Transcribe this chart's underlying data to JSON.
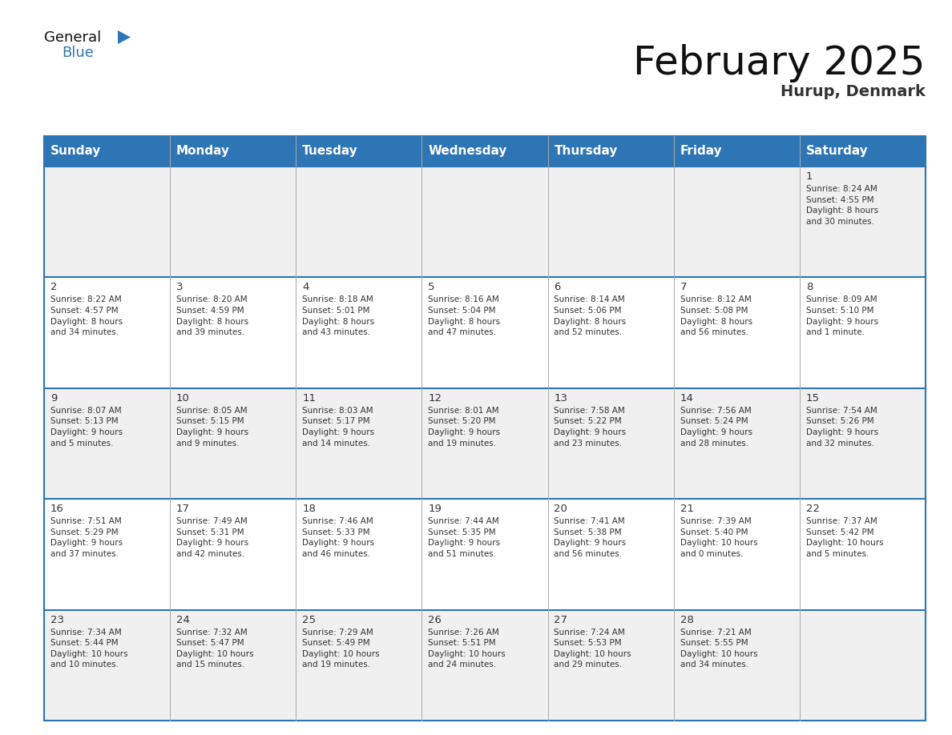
{
  "title": "February 2025",
  "subtitle": "Hurup, Denmark",
  "days_of_week": [
    "Sunday",
    "Monday",
    "Tuesday",
    "Wednesday",
    "Thursday",
    "Friday",
    "Saturday"
  ],
  "header_bg": "#2E75B6",
  "header_text_color": "#FFFFFF",
  "row_line_color": "#2E75B6",
  "cell_line_color": "#AAAAAA",
  "cell_text_color": "#333333",
  "logo_general_color": "#111111",
  "logo_blue_color": "#2E75B6",
  "title_fontsize": 36,
  "subtitle_fontsize": 14,
  "header_fontsize": 11,
  "day_num_fontsize": 9.5,
  "cell_text_fontsize": 7.5,
  "calendar": [
    [
      {
        "day": null,
        "info": null
      },
      {
        "day": null,
        "info": null
      },
      {
        "day": null,
        "info": null
      },
      {
        "day": null,
        "info": null
      },
      {
        "day": null,
        "info": null
      },
      {
        "day": null,
        "info": null
      },
      {
        "day": 1,
        "info": "Sunrise: 8:24 AM\nSunset: 4:55 PM\nDaylight: 8 hours\nand 30 minutes."
      }
    ],
    [
      {
        "day": 2,
        "info": "Sunrise: 8:22 AM\nSunset: 4:57 PM\nDaylight: 8 hours\nand 34 minutes."
      },
      {
        "day": 3,
        "info": "Sunrise: 8:20 AM\nSunset: 4:59 PM\nDaylight: 8 hours\nand 39 minutes."
      },
      {
        "day": 4,
        "info": "Sunrise: 8:18 AM\nSunset: 5:01 PM\nDaylight: 8 hours\nand 43 minutes."
      },
      {
        "day": 5,
        "info": "Sunrise: 8:16 AM\nSunset: 5:04 PM\nDaylight: 8 hours\nand 47 minutes."
      },
      {
        "day": 6,
        "info": "Sunrise: 8:14 AM\nSunset: 5:06 PM\nDaylight: 8 hours\nand 52 minutes."
      },
      {
        "day": 7,
        "info": "Sunrise: 8:12 AM\nSunset: 5:08 PM\nDaylight: 8 hours\nand 56 minutes."
      },
      {
        "day": 8,
        "info": "Sunrise: 8:09 AM\nSunset: 5:10 PM\nDaylight: 9 hours\nand 1 minute."
      }
    ],
    [
      {
        "day": 9,
        "info": "Sunrise: 8:07 AM\nSunset: 5:13 PM\nDaylight: 9 hours\nand 5 minutes."
      },
      {
        "day": 10,
        "info": "Sunrise: 8:05 AM\nSunset: 5:15 PM\nDaylight: 9 hours\nand 9 minutes."
      },
      {
        "day": 11,
        "info": "Sunrise: 8:03 AM\nSunset: 5:17 PM\nDaylight: 9 hours\nand 14 minutes."
      },
      {
        "day": 12,
        "info": "Sunrise: 8:01 AM\nSunset: 5:20 PM\nDaylight: 9 hours\nand 19 minutes."
      },
      {
        "day": 13,
        "info": "Sunrise: 7:58 AM\nSunset: 5:22 PM\nDaylight: 9 hours\nand 23 minutes."
      },
      {
        "day": 14,
        "info": "Sunrise: 7:56 AM\nSunset: 5:24 PM\nDaylight: 9 hours\nand 28 minutes."
      },
      {
        "day": 15,
        "info": "Sunrise: 7:54 AM\nSunset: 5:26 PM\nDaylight: 9 hours\nand 32 minutes."
      }
    ],
    [
      {
        "day": 16,
        "info": "Sunrise: 7:51 AM\nSunset: 5:29 PM\nDaylight: 9 hours\nand 37 minutes."
      },
      {
        "day": 17,
        "info": "Sunrise: 7:49 AM\nSunset: 5:31 PM\nDaylight: 9 hours\nand 42 minutes."
      },
      {
        "day": 18,
        "info": "Sunrise: 7:46 AM\nSunset: 5:33 PM\nDaylight: 9 hours\nand 46 minutes."
      },
      {
        "day": 19,
        "info": "Sunrise: 7:44 AM\nSunset: 5:35 PM\nDaylight: 9 hours\nand 51 minutes."
      },
      {
        "day": 20,
        "info": "Sunrise: 7:41 AM\nSunset: 5:38 PM\nDaylight: 9 hours\nand 56 minutes."
      },
      {
        "day": 21,
        "info": "Sunrise: 7:39 AM\nSunset: 5:40 PM\nDaylight: 10 hours\nand 0 minutes."
      },
      {
        "day": 22,
        "info": "Sunrise: 7:37 AM\nSunset: 5:42 PM\nDaylight: 10 hours\nand 5 minutes."
      }
    ],
    [
      {
        "day": 23,
        "info": "Sunrise: 7:34 AM\nSunset: 5:44 PM\nDaylight: 10 hours\nand 10 minutes."
      },
      {
        "day": 24,
        "info": "Sunrise: 7:32 AM\nSunset: 5:47 PM\nDaylight: 10 hours\nand 15 minutes."
      },
      {
        "day": 25,
        "info": "Sunrise: 7:29 AM\nSunset: 5:49 PM\nDaylight: 10 hours\nand 19 minutes."
      },
      {
        "day": 26,
        "info": "Sunrise: 7:26 AM\nSunset: 5:51 PM\nDaylight: 10 hours\nand 24 minutes."
      },
      {
        "day": 27,
        "info": "Sunrise: 7:24 AM\nSunset: 5:53 PM\nDaylight: 10 hours\nand 29 minutes."
      },
      {
        "day": 28,
        "info": "Sunrise: 7:21 AM\nSunset: 5:55 PM\nDaylight: 10 hours\nand 34 minutes."
      },
      {
        "day": null,
        "info": null
      }
    ]
  ]
}
